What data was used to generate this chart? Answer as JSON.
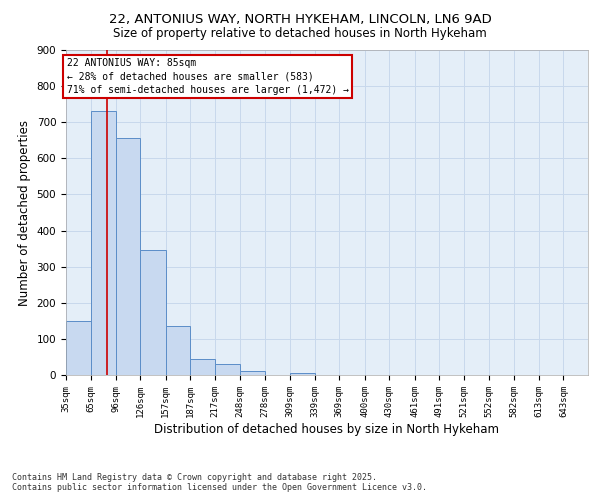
{
  "title1": "22, ANTONIUS WAY, NORTH HYKEHAM, LINCOLN, LN6 9AD",
  "title2": "Size of property relative to detached houses in North Hykeham",
  "bar_values": [
    150,
    730,
    655,
    345,
    135,
    45,
    30,
    12,
    0,
    5,
    0,
    0,
    0,
    0,
    0,
    0,
    0,
    0,
    0
  ],
  "bin_labels": [
    "35sqm",
    "65sqm",
    "96sqm",
    "126sqm",
    "157sqm",
    "187sqm",
    "217sqm",
    "248sqm",
    "278sqm",
    "309sqm",
    "339sqm",
    "369sqm",
    "400sqm",
    "430sqm",
    "461sqm",
    "491sqm",
    "521sqm",
    "552sqm",
    "582sqm",
    "613sqm",
    "643sqm"
  ],
  "xlabel": "Distribution of detached houses by size in North Hykeham",
  "ylabel": "Number of detached properties",
  "bar_color": "#c8d9f0",
  "bar_edge_color": "#5b8dc8",
  "grid_color": "#c8d8ec",
  "bg_color": "#e4eef8",
  "vline_x": 85,
  "vline_color": "#cc0000",
  "annotation_title": "22 ANTONIUS WAY: 85sqm",
  "annotation_line1": "← 28% of detached houses are smaller (583)",
  "annotation_line2": "71% of semi-detached houses are larger (1,472) →",
  "annotation_box_color": "#cc0000",
  "ylim": [
    0,
    900
  ],
  "yticks": [
    0,
    100,
    200,
    300,
    400,
    500,
    600,
    700,
    800,
    900
  ],
  "footnote1": "Contains HM Land Registry data © Crown copyright and database right 2025.",
  "footnote2": "Contains public sector information licensed under the Open Government Licence v3.0.",
  "bin_edges": [
    35,
    65,
    96,
    126,
    157,
    187,
    217,
    248,
    278,
    309,
    339,
    369,
    400,
    430,
    461,
    491,
    521,
    552,
    582,
    613,
    643
  ]
}
